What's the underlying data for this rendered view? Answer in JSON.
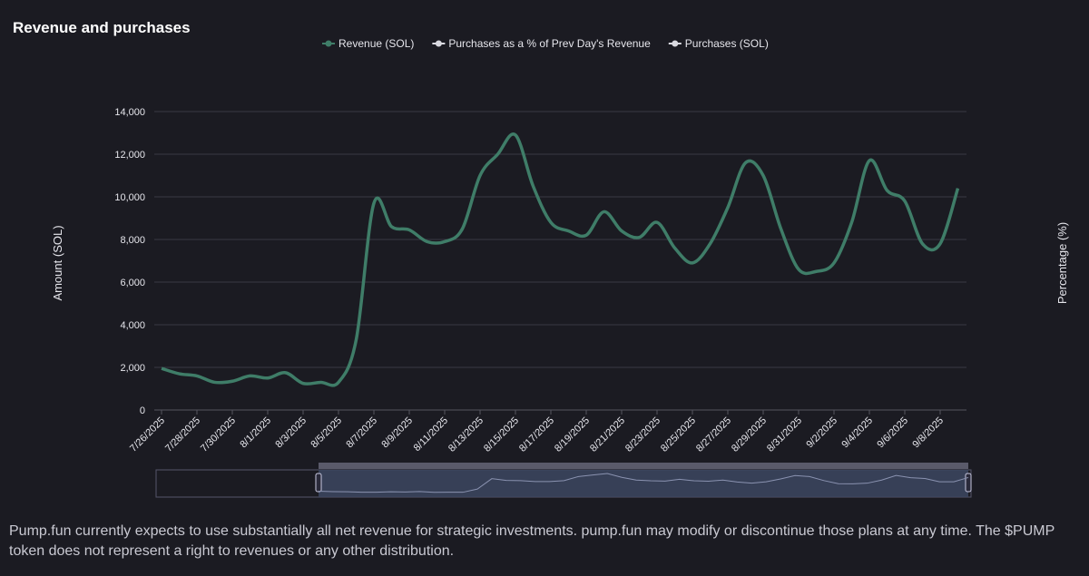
{
  "chart_data": {
    "type": "line",
    "title": "Revenue and purchases",
    "y_axis_label": "Amount (SOL)",
    "y2_axis_label": "Percentage (%)",
    "categories": [
      "7/26/2025",
      null,
      "7/28/2025",
      null,
      "7/30/2025",
      null,
      "8/1/2025",
      null,
      "8/3/2025",
      null,
      "8/5/2025",
      null,
      "8/7/2025",
      null,
      "8/9/2025",
      null,
      "8/11/2025",
      null,
      "8/13/2025",
      null,
      "8/15/2025",
      null,
      "8/17/2025",
      null,
      "8/19/2025",
      null,
      "8/21/2025",
      null,
      "8/23/2025",
      null,
      "8/25/2025",
      null,
      "8/27/2025",
      null,
      "8/29/2025",
      null,
      "8/31/2025",
      null,
      "9/2/2025",
      null,
      "9/4/2025",
      null,
      "9/6/2025",
      null,
      "9/8/2025",
      null
    ],
    "series": [
      {
        "name": "Revenue (SOL)",
        "color": "#3f7d68",
        "values": [
          1950,
          1700,
          1600,
          1300,
          1350,
          1600,
          1500,
          1750,
          1250,
          1300,
          1300,
          3300,
          9700,
          8600,
          8450,
          7900,
          7900,
          8500,
          11000,
          12000,
          12900,
          10500,
          8800,
          8400,
          8200,
          9300,
          8400,
          8100,
          8800,
          7600,
          6900,
          7800,
          9500,
          11600,
          11000,
          8500,
          6600,
          6500,
          6900,
          8800,
          11700,
          10300,
          9800,
          7800,
          7800,
          10400
        ]
      }
    ],
    "other_legend_items": [
      {
        "name": "Purchases as a % of Prev Day's Revenue",
        "color": "#d9d9e0"
      },
      {
        "name": "Purchases (SOL)",
        "color": "#d9d9e0"
      }
    ],
    "ylim": [
      0,
      14000
    ],
    "yticks": [
      0,
      {
        "value": 2000,
        "label": "2,000"
      },
      {
        "value": 4000,
        "label": "4,000"
      },
      {
        "value": 6000,
        "label": "6,000"
      },
      {
        "value": 8000,
        "label": "8,000"
      },
      {
        "value": 10000,
        "label": "10,000"
      },
      {
        "value": 12000,
        "label": "12,000"
      },
      {
        "value": 14000,
        "label": "14,000"
      }
    ],
    "grid": true
  },
  "footer": "Pump.fun currently expects to use substantially all net revenue for strategic investments. pump.fun may modify or discontinue those plans at any time. The $PUMP token does not represent a right to revenues or any other distribution."
}
